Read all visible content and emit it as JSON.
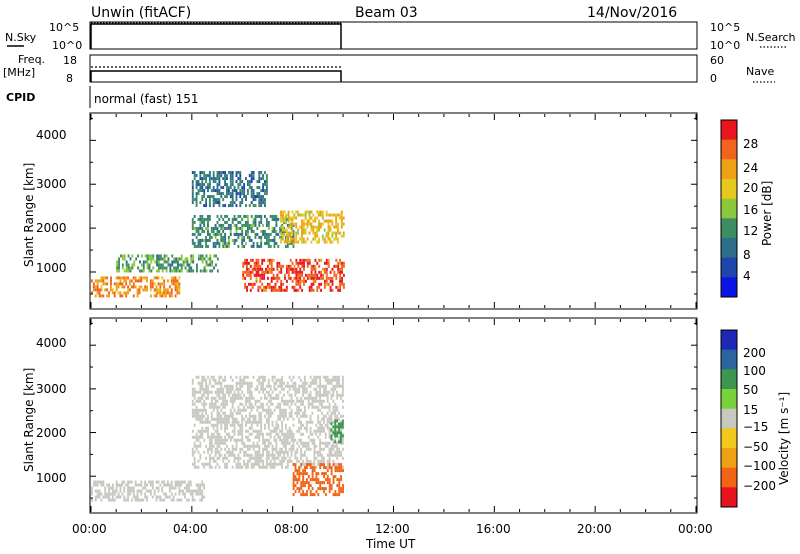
{
  "header": {
    "station": "Unwin (fitACF)",
    "beam": "Beam 03",
    "date": "14/Nov/2016"
  },
  "sky_panel": {
    "left_label": "N.Sky",
    "left_ticks": [
      "10^5",
      "10^0"
    ],
    "right_ticks": [
      "10^5",
      "10^0"
    ],
    "right_label": "N.Search"
  },
  "freq_panel": {
    "left_label_1": "Freq.",
    "left_label_2": "[MHz]",
    "left_ticks": [
      "18",
      "8"
    ],
    "right_ticks": [
      "60",
      "0"
    ],
    "right_label": "Nave"
  },
  "cpid": {
    "label": "CPID",
    "value": "normal (fast) 151"
  },
  "x_axis": {
    "ticks": [
      "00:00",
      "04:00",
      "08:00",
      "12:00",
      "16:00",
      "20:00",
      "00:00"
    ],
    "label": "Time UT"
  },
  "power_colorbar": {
    "title": "Power [dB]",
    "ticks": [
      "28",
      "24",
      "20",
      "16",
      "12",
      "8",
      "4"
    ],
    "colors": [
      "#e8141e",
      "#f0641e",
      "#f0a014",
      "#e6c81e",
      "#8cc83c",
      "#3c8c64",
      "#2d6e8c",
      "#1e46aa",
      "#0a14e6"
    ]
  },
  "velocity_colorbar": {
    "title": "Velocity [m s⁻¹]",
    "ticks": [
      "200",
      "100",
      "50",
      "15",
      "−15",
      "−50",
      "−100",
      "−200"
    ],
    "colors": [
      "#1e28b4",
      "#2d64a0",
      "#3c9650",
      "#78d23c",
      "#c8c8c0",
      "#f0c81e",
      "#f0a014",
      "#f06414",
      "#e6141e"
    ]
  },
  "chart_data": [
    {
      "type": "line",
      "title": "N.Sky / N.Search",
      "x": [
        0,
        10.0
      ],
      "x_range": [
        0,
        24
      ],
      "note_shown": "noise level near top of scale from 00:00 to ~10:00 UT"
    },
    {
      "type": "line",
      "title": "Freq / Nave",
      "x_range": [
        0,
        24
      ],
      "series": [
        {
          "name": "Freq.",
          "x": [
            0,
            10.0
          ],
          "y": [
            11,
            11
          ]
        },
        {
          "name": "Nave",
          "x": [
            0,
            10.0
          ],
          "y": [
            40,
            40
          ]
        }
      ],
      "ylim_left": [
        8,
        18
      ],
      "ylim_right": [
        0,
        60
      ]
    },
    {
      "type": "heatmap",
      "title": "Power [dB]",
      "xlabel": "Time UT",
      "ylabel": "Slant Range [km]",
      "x_range": [
        0,
        24
      ],
      "y_range": [
        180,
        4600
      ],
      "y_ticks": [
        1000,
        2000,
        3000,
        4000
      ],
      "color_range": [
        0,
        30
      ],
      "features": [
        {
          "x": [
            0.0,
            3.5
          ],
          "y": [
            450,
            900
          ],
          "value": 24
        },
        {
          "x": [
            1.0,
            5.0
          ],
          "y": [
            1000,
            1400
          ],
          "value": 12
        },
        {
          "x": [
            6.0,
            10.0
          ],
          "y": [
            600,
            1300
          ],
          "value": 28
        },
        {
          "x": [
            4.0,
            8.0
          ],
          "y": [
            1600,
            2300
          ],
          "value": 10
        },
        {
          "x": [
            7.5,
            10.0
          ],
          "y": [
            1700,
            2400
          ],
          "value": 20
        },
        {
          "x": [
            4.0,
            7.0
          ],
          "y": [
            2500,
            3300
          ],
          "value": 8
        }
      ]
    },
    {
      "type": "heatmap",
      "title": "Velocity [m s⁻¹]",
      "xlabel": "Time UT",
      "ylabel": "Slant Range [km]",
      "x_range": [
        0,
        24
      ],
      "y_range": [
        180,
        4600
      ],
      "y_ticks": [
        1000,
        2000,
        3000,
        4000
      ],
      "color_range": [
        -200,
        200
      ],
      "features": [
        {
          "x": [
            0.0,
            4.5
          ],
          "y": [
            450,
            900
          ],
          "value": 0
        },
        {
          "x": [
            4.0,
            10.0
          ],
          "y": [
            1200,
            3300
          ],
          "value": 0
        },
        {
          "x": [
            8.0,
            10.0
          ],
          "y": [
            600,
            1300
          ],
          "value": -150
        },
        {
          "x": [
            9.5,
            10.0
          ],
          "y": [
            1800,
            2300
          ],
          "value": 60
        }
      ]
    }
  ]
}
